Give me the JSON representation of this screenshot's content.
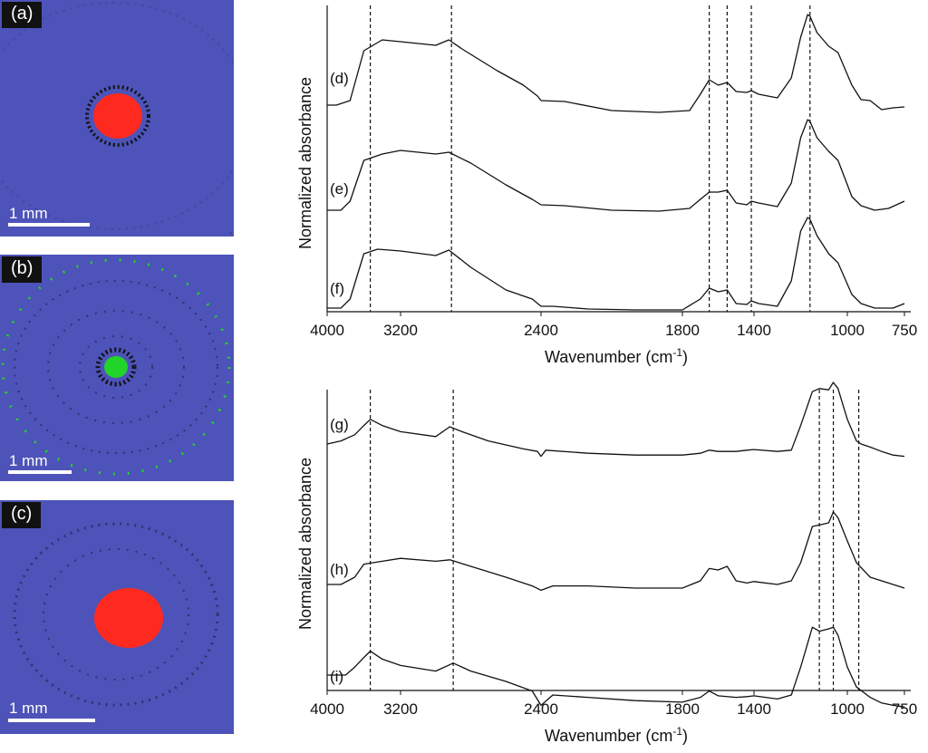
{
  "maps": [
    {
      "label": "(a)",
      "scale": "1 mm",
      "spot_color": "#ff2a1f",
      "background_color": "#4d53b8"
    },
    {
      "label": "(b)",
      "scale": "1 mm",
      "spot_color": "#22d32a",
      "background_color": "#4d53b8"
    },
    {
      "label": "(c)",
      "scale": "1 mm",
      "spot_color": "#ff2a1f",
      "background_color": "#4d53b8"
    }
  ],
  "chart_data": [
    {
      "type": "line",
      "xlabel": "Wavenumber (cm",
      "xlabel_sup": "-1",
      "ylabel": "Normalized absorbance",
      "x_ticks": [
        "4000",
        "3200",
        "2400",
        "1800",
        "1400",
        "1000",
        "750"
      ],
      "x_reversed": true,
      "reference_lines_x": [
        3530,
        2910,
        1650,
        1550,
        1415,
        1160
      ],
      "series": [
        {
          "name": "(d)",
          "points": [
            [
              4000,
              0.0
            ],
            [
              3900,
              0.0
            ],
            [
              3750,
              0.05
            ],
            [
              3600,
              0.6
            ],
            [
              3400,
              0.72
            ],
            [
              3200,
              0.7
            ],
            [
              3000,
              0.66
            ],
            [
              2925,
              0.72
            ],
            [
              2850,
              0.62
            ],
            [
              2650,
              0.38
            ],
            [
              2500,
              0.22
            ],
            [
              2420,
              0.1
            ],
            [
              2400,
              0.05
            ],
            [
              2300,
              0.04
            ],
            [
              2100,
              -0.06
            ],
            [
              1900,
              -0.08
            ],
            [
              1760,
              -0.06
            ],
            [
              1700,
              0.12
            ],
            [
              1650,
              0.28
            ],
            [
              1600,
              0.22
            ],
            [
              1550,
              0.25
            ],
            [
              1500,
              0.15
            ],
            [
              1440,
              0.14
            ],
            [
              1415,
              0.16
            ],
            [
              1380,
              0.12
            ],
            [
              1300,
              0.08
            ],
            [
              1240,
              0.3
            ],
            [
              1200,
              0.75
            ],
            [
              1170,
              1.0
            ],
            [
              1160,
              0.98
            ],
            [
              1130,
              0.8
            ],
            [
              1080,
              0.65
            ],
            [
              1040,
              0.58
            ],
            [
              980,
              0.22
            ],
            [
              940,
              0.06
            ],
            [
              900,
              0.05
            ],
            [
              850,
              -0.05
            ],
            [
              800,
              -0.03
            ],
            [
              750,
              -0.02
            ]
          ]
        },
        {
          "name": "(e)",
          "points": [
            [
              4000,
              0.0
            ],
            [
              3850,
              0.0
            ],
            [
              3750,
              0.1
            ],
            [
              3600,
              0.55
            ],
            [
              3400,
              0.62
            ],
            [
              3200,
              0.66
            ],
            [
              3000,
              0.62
            ],
            [
              2925,
              0.64
            ],
            [
              2800,
              0.52
            ],
            [
              2600,
              0.28
            ],
            [
              2450,
              0.12
            ],
            [
              2400,
              0.06
            ],
            [
              2300,
              0.05
            ],
            [
              2100,
              0.0
            ],
            [
              1900,
              -0.01
            ],
            [
              1760,
              0.02
            ],
            [
              1700,
              0.12
            ],
            [
              1650,
              0.2
            ],
            [
              1600,
              0.2
            ],
            [
              1550,
              0.22
            ],
            [
              1500,
              0.08
            ],
            [
              1440,
              0.06
            ],
            [
              1415,
              0.1
            ],
            [
              1380,
              0.08
            ],
            [
              1300,
              0.04
            ],
            [
              1240,
              0.3
            ],
            [
              1200,
              0.8
            ],
            [
              1170,
              1.0
            ],
            [
              1160,
              0.98
            ],
            [
              1130,
              0.8
            ],
            [
              1080,
              0.65
            ],
            [
              1040,
              0.55
            ],
            [
              980,
              0.15
            ],
            [
              940,
              0.05
            ],
            [
              880,
              0.0
            ],
            [
              820,
              0.02
            ],
            [
              750,
              0.1
            ]
          ]
        },
        {
          "name": "(f)",
          "points": [
            [
              4000,
              0.0
            ],
            [
              3850,
              0.0
            ],
            [
              3750,
              0.1
            ],
            [
              3600,
              0.6
            ],
            [
              3450,
              0.65
            ],
            [
              3200,
              0.63
            ],
            [
              3000,
              0.58
            ],
            [
              2925,
              0.64
            ],
            [
              2800,
              0.45
            ],
            [
              2600,
              0.2
            ],
            [
              2450,
              0.1
            ],
            [
              2400,
              0.02
            ],
            [
              2350,
              0.02
            ],
            [
              2200,
              -0.01
            ],
            [
              2000,
              -0.02
            ],
            [
              1800,
              -0.02
            ],
            [
              1700,
              0.1
            ],
            [
              1650,
              0.22
            ],
            [
              1600,
              0.18
            ],
            [
              1550,
              0.2
            ],
            [
              1500,
              0.05
            ],
            [
              1440,
              0.04
            ],
            [
              1415,
              0.08
            ],
            [
              1380,
              0.05
            ],
            [
              1300,
              0.02
            ],
            [
              1240,
              0.3
            ],
            [
              1200,
              0.85
            ],
            [
              1170,
              1.0
            ],
            [
              1160,
              0.98
            ],
            [
              1130,
              0.8
            ],
            [
              1080,
              0.6
            ],
            [
              1040,
              0.5
            ],
            [
              980,
              0.15
            ],
            [
              940,
              0.05
            ],
            [
              880,
              0.0
            ],
            [
              800,
              0.0
            ],
            [
              750,
              0.05
            ]
          ]
        }
      ]
    },
    {
      "type": "line",
      "xlabel": "Wavenumber (cm",
      "xlabel_sup": "-1",
      "ylabel": "Normalized absorbance",
      "x_ticks": [
        "4000",
        "3200",
        "2400",
        "1800",
        "1400",
        "1000",
        "750"
      ],
      "x_reversed": true,
      "reference_lines_x": [
        3530,
        2900,
        1120,
        1060,
        950
      ],
      "series": [
        {
          "name": "(g)",
          "points": [
            [
              4000,
              0.0
            ],
            [
              3850,
              0.05
            ],
            [
              3700,
              0.15
            ],
            [
              3600,
              0.3
            ],
            [
              3530,
              0.4
            ],
            [
              3400,
              0.3
            ],
            [
              3200,
              0.2
            ],
            [
              3000,
              0.12
            ],
            [
              2920,
              0.28
            ],
            [
              2850,
              0.2
            ],
            [
              2700,
              0.05
            ],
            [
              2500,
              -0.08
            ],
            [
              2420,
              -0.12
            ],
            [
              2400,
              -0.2
            ],
            [
              2380,
              -0.1
            ],
            [
              2200,
              -0.15
            ],
            [
              2000,
              -0.18
            ],
            [
              1800,
              -0.18
            ],
            [
              1700,
              -0.15
            ],
            [
              1650,
              -0.1
            ],
            [
              1600,
              -0.12
            ],
            [
              1500,
              -0.12
            ],
            [
              1440,
              -0.1
            ],
            [
              1400,
              -0.09
            ],
            [
              1300,
              -0.12
            ],
            [
              1240,
              -0.1
            ],
            [
              1200,
              0.3
            ],
            [
              1150,
              0.85
            ],
            [
              1120,
              0.9
            ],
            [
              1080,
              0.88
            ],
            [
              1060,
              1.0
            ],
            [
              1040,
              0.9
            ],
            [
              1000,
              0.4
            ],
            [
              960,
              0.05
            ],
            [
              940,
              0.0
            ],
            [
              900,
              -0.05
            ],
            [
              850,
              -0.12
            ],
            [
              800,
              -0.18
            ],
            [
              750,
              -0.2
            ]
          ]
        },
        {
          "name": "(h)",
          "points": [
            [
              4000,
              0.0
            ],
            [
              3850,
              0.0
            ],
            [
              3700,
              0.1
            ],
            [
              3600,
              0.28
            ],
            [
              3400,
              0.32
            ],
            [
              3200,
              0.36
            ],
            [
              3000,
              0.32
            ],
            [
              2920,
              0.34
            ],
            [
              2800,
              0.25
            ],
            [
              2600,
              0.1
            ],
            [
              2450,
              -0.02
            ],
            [
              2400,
              -0.08
            ],
            [
              2350,
              -0.02
            ],
            [
              2200,
              -0.02
            ],
            [
              2000,
              -0.05
            ],
            [
              1800,
              -0.05
            ],
            [
              1700,
              0.05
            ],
            [
              1650,
              0.22
            ],
            [
              1600,
              0.2
            ],
            [
              1550,
              0.25
            ],
            [
              1500,
              0.05
            ],
            [
              1440,
              0.02
            ],
            [
              1400,
              0.04
            ],
            [
              1300,
              0.0
            ],
            [
              1240,
              0.05
            ],
            [
              1200,
              0.3
            ],
            [
              1150,
              0.8
            ],
            [
              1120,
              0.82
            ],
            [
              1080,
              0.85
            ],
            [
              1060,
              1.0
            ],
            [
              1040,
              0.92
            ],
            [
              1000,
              0.6
            ],
            [
              960,
              0.3
            ],
            [
              900,
              0.1
            ],
            [
              850,
              0.05
            ],
            [
              800,
              0.0
            ],
            [
              750,
              -0.05
            ]
          ]
        },
        {
          "name": "(i)",
          "points": [
            [
              4000,
              0.0
            ],
            [
              3800,
              0.0
            ],
            [
              3700,
              0.1
            ],
            [
              3600,
              0.22
            ],
            [
              3530,
              0.3
            ],
            [
              3400,
              0.2
            ],
            [
              3200,
              0.12
            ],
            [
              3000,
              0.05
            ],
            [
              2900,
              0.15
            ],
            [
              2800,
              0.05
            ],
            [
              2600,
              -0.08
            ],
            [
              2450,
              -0.2
            ],
            [
              2400,
              -0.38
            ],
            [
              2350,
              -0.25
            ],
            [
              2200,
              -0.28
            ],
            [
              2000,
              -0.32
            ],
            [
              1800,
              -0.34
            ],
            [
              1700,
              -0.28
            ],
            [
              1650,
              -0.2
            ],
            [
              1600,
              -0.26
            ],
            [
              1500,
              -0.28
            ],
            [
              1440,
              -0.27
            ],
            [
              1400,
              -0.26
            ],
            [
              1300,
              -0.3
            ],
            [
              1240,
              -0.25
            ],
            [
              1200,
              0.1
            ],
            [
              1150,
              0.6
            ],
            [
              1120,
              0.55
            ],
            [
              1080,
              0.58
            ],
            [
              1060,
              0.6
            ],
            [
              1040,
              0.5
            ],
            [
              1000,
              0.1
            ],
            [
              960,
              -0.15
            ],
            [
              900,
              -0.28
            ],
            [
              850,
              -0.35
            ],
            [
              800,
              -0.38
            ],
            [
              750,
              -0.4
            ]
          ]
        }
      ]
    }
  ]
}
